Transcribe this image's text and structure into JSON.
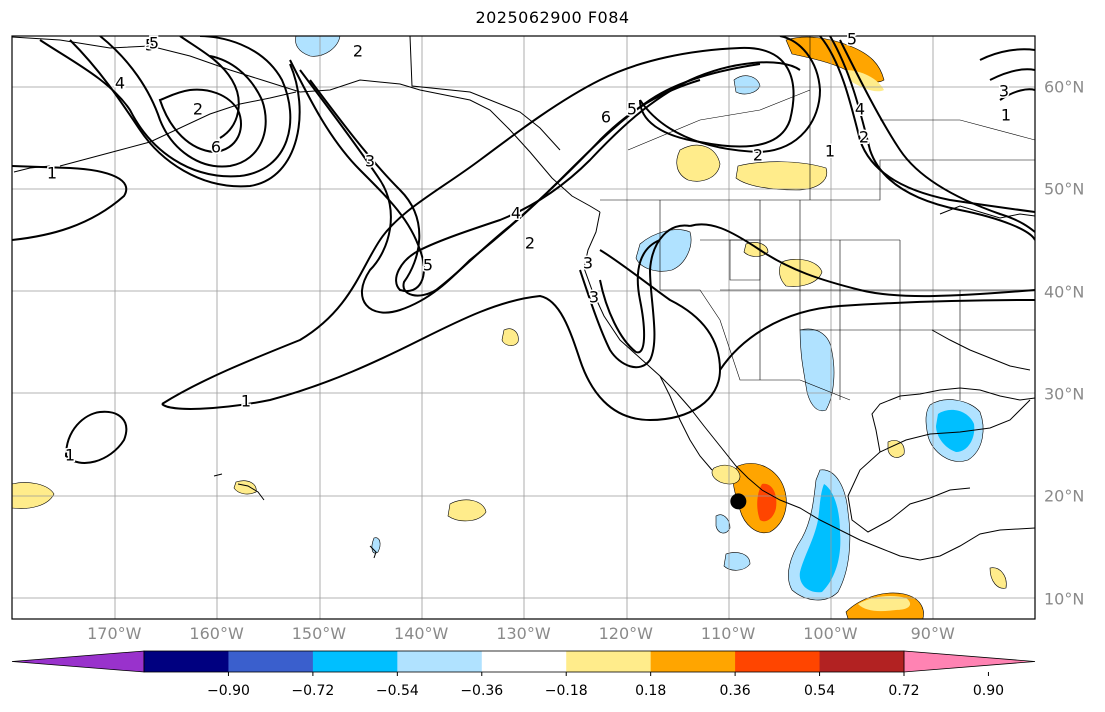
{
  "title": "2025062900 F084",
  "map": {
    "projection": "equirectangular",
    "lon_range": [
      -180,
      -80
    ],
    "lat_range": [
      8,
      65
    ],
    "lon_ticks": [
      "170°W",
      "160°W",
      "150°W",
      "140°W",
      "130°W",
      "120°W",
      "110°W",
      "100°W",
      "90°W"
    ],
    "lat_ticks": [
      "10°N",
      "20°N",
      "30°N",
      "40°N",
      "50°N",
      "60°N"
    ],
    "contour_labels": [
      "1",
      "1",
      "2",
      "2",
      "3",
      "3",
      "4",
      "5",
      "5",
      "6",
      "1",
      "2",
      "3",
      "4",
      "5",
      "6",
      "5",
      "4",
      "3",
      "2",
      "1",
      "1",
      "2",
      "5"
    ],
    "marker": {
      "lon": -109,
      "lat": 19.5,
      "symbol": "black-dot"
    }
  },
  "colorbar": {
    "colors": [
      "#9932cc",
      "#000080",
      "#3a5fcd",
      "#00bfff",
      "#b0e2ff",
      "#ffffff",
      "#ffec8b",
      "#ffa500",
      "#ff4500",
      "#b22222",
      "#ff83b3"
    ],
    "tick_labels": [
      "−0.90",
      "−0.72",
      "−0.54",
      "−0.36",
      "−0.18",
      "0.18",
      "0.36",
      "0.54",
      "0.72",
      "0.90"
    ],
    "extend": "both"
  }
}
